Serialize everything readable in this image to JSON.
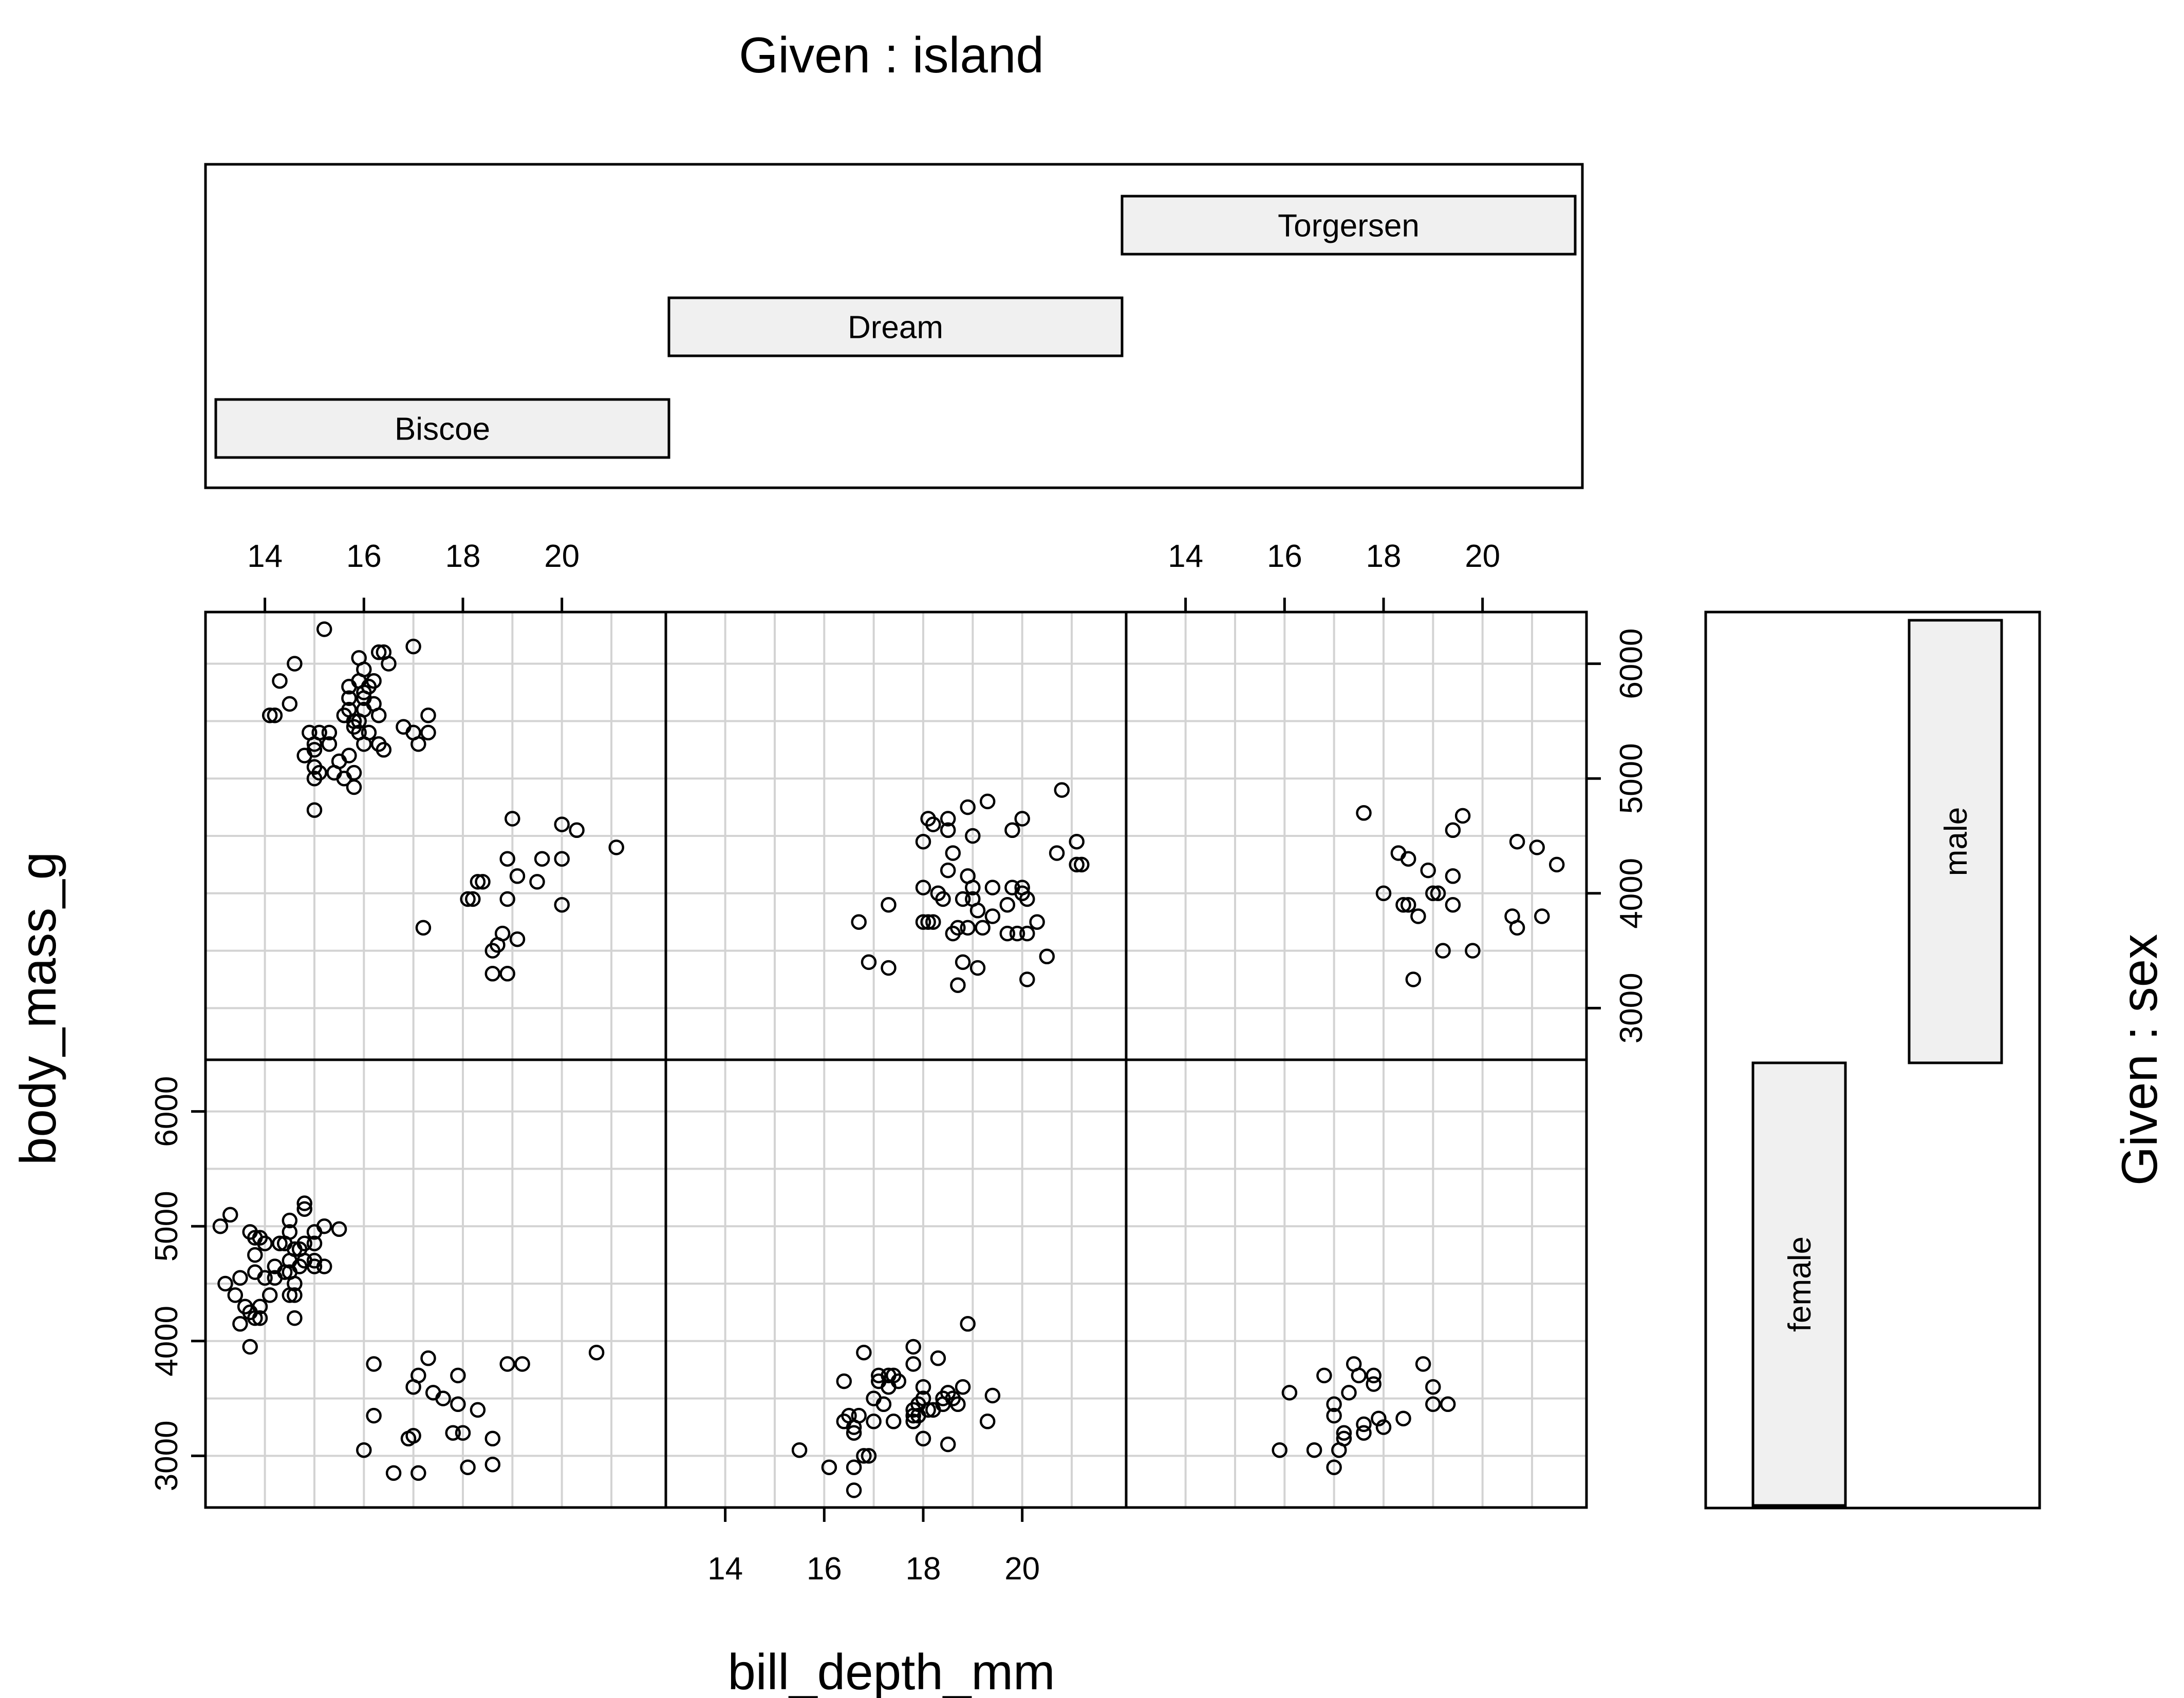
{
  "chart_data": {
    "type": "scatter",
    "title": "Given : island",
    "xlabel": "bill_depth_mm",
    "ylabel": "body_mass_g",
    "right_label": "Given : sex",
    "xlim": [
      12.8,
      22.1
    ],
    "ylim": [
      2550,
      6450
    ],
    "x_ticks": [
      14,
      16,
      18,
      20
    ],
    "y_ticks": [
      3000,
      4000,
      5000,
      6000
    ],
    "x_gridlines": [
      14,
      15,
      16,
      17,
      18,
      19,
      20,
      21
    ],
    "y_gridlines": [
      3000,
      3500,
      4000,
      4500,
      5000,
      5500,
      6000
    ],
    "grid": true,
    "islands": [
      "Biscoe",
      "Dream",
      "Torgersen"
    ],
    "sexes": [
      "female",
      "male"
    ],
    "panels": [
      {
        "island": "Biscoe",
        "sex": "male",
        "points": [
          [
            14.1,
            5550
          ],
          [
            14.2,
            5550
          ],
          [
            14.3,
            5850
          ],
          [
            14.5,
            5650
          ],
          [
            14.6,
            6000
          ],
          [
            14.8,
            5200
          ],
          [
            14.9,
            5400
          ],
          [
            15.0,
            5100
          ],
          [
            15.0,
            5000
          ],
          [
            15.0,
            5300
          ],
          [
            15.0,
            5250
          ],
          [
            15.0,
            4725
          ],
          [
            15.1,
            5400
          ],
          [
            15.1,
            5050
          ],
          [
            15.2,
            6300
          ],
          [
            15.3,
            5400
          ],
          [
            15.3,
            5300
          ],
          [
            15.4,
            5050
          ],
          [
            15.5,
            5150
          ],
          [
            15.6,
            5000
          ],
          [
            15.6,
            5550
          ],
          [
            15.7,
            5800
          ],
          [
            15.7,
            5700
          ],
          [
            15.7,
            5600
          ],
          [
            15.7,
            5200
          ],
          [
            15.8,
            5450
          ],
          [
            15.8,
            5500
          ],
          [
            15.8,
            4925
          ],
          [
            15.8,
            5050
          ],
          [
            15.9,
            5850
          ],
          [
            15.9,
            6050
          ],
          [
            15.9,
            5400
          ],
          [
            15.9,
            5500
          ],
          [
            16.0,
            5750
          ],
          [
            16.0,
            5700
          ],
          [
            16.0,
            5950
          ],
          [
            16.0,
            5600
          ],
          [
            16.0,
            5300
          ],
          [
            16.1,
            5800
          ],
          [
            16.1,
            5400
          ],
          [
            16.2,
            5650
          ],
          [
            16.2,
            5850
          ],
          [
            16.3,
            6100
          ],
          [
            16.3,
            5550
          ],
          [
            16.3,
            5300
          ],
          [
            16.4,
            5250
          ],
          [
            16.4,
            6100
          ],
          [
            16.5,
            6000
          ],
          [
            16.8,
            5450
          ],
          [
            17.0,
            6150
          ],
          [
            17.0,
            5400
          ],
          [
            17.1,
            5300
          ],
          [
            17.3,
            5400
          ],
          [
            17.3,
            5550
          ],
          [
            17.2,
            3700
          ],
          [
            18.1,
            3950
          ],
          [
            18.2,
            3950
          ],
          [
            18.3,
            4100
          ],
          [
            18.4,
            4100
          ],
          [
            18.6,
            3500
          ],
          [
            18.6,
            3300
          ],
          [
            18.7,
            3550
          ],
          [
            18.8,
            3650
          ],
          [
            18.9,
            4300
          ],
          [
            18.9,
            3950
          ],
          [
            18.9,
            3300
          ],
          [
            19.0,
            4650
          ],
          [
            19.1,
            4150
          ],
          [
            19.1,
            3600
          ],
          [
            19.5,
            4100
          ],
          [
            19.6,
            4300
          ],
          [
            20.0,
            4600
          ],
          [
            20.0,
            4300
          ],
          [
            20.0,
            3900
          ],
          [
            20.3,
            4550
          ],
          [
            21.1,
            4400
          ]
        ]
      },
      {
        "island": "Dream",
        "sex": "male",
        "points": [
          [
            16.7,
            3750
          ],
          [
            16.9,
            3400
          ],
          [
            17.3,
            3900
          ],
          [
            17.3,
            3350
          ],
          [
            18.0,
            4450
          ],
          [
            18.0,
            4050
          ],
          [
            18.0,
            3750
          ],
          [
            18.1,
            4650
          ],
          [
            18.1,
            3750
          ],
          [
            18.2,
            4600
          ],
          [
            18.2,
            3750
          ],
          [
            18.3,
            4000
          ],
          [
            18.4,
            3950
          ],
          [
            18.5,
            4650
          ],
          [
            18.5,
            4550
          ],
          [
            18.5,
            4200
          ],
          [
            18.6,
            4350
          ],
          [
            18.6,
            3650
          ],
          [
            18.7,
            3200
          ],
          [
            18.7,
            3700
          ],
          [
            18.8,
            3950
          ],
          [
            18.8,
            3400
          ],
          [
            18.9,
            4750
          ],
          [
            18.9,
            4150
          ],
          [
            18.9,
            3700
          ],
          [
            19.0,
            4500
          ],
          [
            19.0,
            4050
          ],
          [
            19.0,
            3950
          ],
          [
            19.1,
            3850
          ],
          [
            19.1,
            3350
          ],
          [
            19.2,
            3700
          ],
          [
            19.3,
            4800
          ],
          [
            19.4,
            4050
          ],
          [
            19.4,
            3800
          ],
          [
            19.7,
            3900
          ],
          [
            19.7,
            3650
          ],
          [
            19.8,
            4550
          ],
          [
            19.8,
            4050
          ],
          [
            19.9,
            3650
          ],
          [
            20.0,
            4650
          ],
          [
            20.0,
            4050
          ],
          [
            20.0,
            4000
          ],
          [
            20.1,
            3650
          ],
          [
            20.1,
            3950
          ],
          [
            20.1,
            3250
          ],
          [
            20.3,
            3750
          ],
          [
            20.5,
            3450
          ],
          [
            20.7,
            4350
          ],
          [
            20.8,
            4900
          ],
          [
            21.1,
            4450
          ],
          [
            21.1,
            4250
          ],
          [
            21.2,
            4250
          ]
        ]
      },
      {
        "island": "Torgersen",
        "sex": "male",
        "points": [
          [
            17.6,
            4700
          ],
          [
            18.0,
            4000
          ],
          [
            18.3,
            4350
          ],
          [
            18.4,
            3900
          ],
          [
            18.5,
            4300
          ],
          [
            18.5,
            3900
          ],
          [
            18.6,
            3250
          ],
          [
            18.7,
            3800
          ],
          [
            18.9,
            4200
          ],
          [
            19.0,
            4000
          ],
          [
            19.1,
            4000
          ],
          [
            19.2,
            3500
          ],
          [
            19.4,
            4550
          ],
          [
            19.4,
            4150
          ],
          [
            19.4,
            3900
          ],
          [
            19.6,
            4675
          ],
          [
            19.8,
            3500
          ],
          [
            20.6,
            3800
          ],
          [
            20.7,
            3700
          ],
          [
            20.7,
            4450
          ],
          [
            21.1,
            4400
          ],
          [
            21.2,
            3800
          ],
          [
            21.5,
            4250
          ]
        ]
      },
      {
        "island": "Biscoe",
        "sex": "female",
        "points": [
          [
            13.1,
            5000
          ],
          [
            13.2,
            4500
          ],
          [
            13.3,
            5100
          ],
          [
            13.4,
            4400
          ],
          [
            13.5,
            4550
          ],
          [
            13.5,
            4150
          ],
          [
            13.6,
            4300
          ],
          [
            13.7,
            4950
          ],
          [
            13.7,
            4250
          ],
          [
            13.7,
            3950
          ],
          [
            13.8,
            4900
          ],
          [
            13.8,
            4750
          ],
          [
            13.8,
            4600
          ],
          [
            13.8,
            4200
          ],
          [
            13.9,
            4900
          ],
          [
            13.9,
            4300
          ],
          [
            13.9,
            4200
          ],
          [
            14.0,
            4550
          ],
          [
            14.0,
            4850
          ],
          [
            14.1,
            4400
          ],
          [
            14.2,
            4650
          ],
          [
            14.2,
            4550
          ],
          [
            14.3,
            4850
          ],
          [
            14.4,
            4600
          ],
          [
            14.4,
            4850
          ],
          [
            14.5,
            4700
          ],
          [
            14.5,
            4400
          ],
          [
            14.5,
            4600
          ],
          [
            14.5,
            4950
          ],
          [
            14.5,
            5050
          ],
          [
            14.6,
            4800
          ],
          [
            14.6,
            4500
          ],
          [
            14.6,
            4200
          ],
          [
            14.6,
            4400
          ],
          [
            14.7,
            4650
          ],
          [
            14.7,
            4800
          ],
          [
            14.8,
            4700
          ],
          [
            14.8,
            4850
          ],
          [
            14.8,
            5150
          ],
          [
            14.8,
            5200
          ],
          [
            15.0,
            4650
          ],
          [
            15.0,
            4700
          ],
          [
            15.0,
            4850
          ],
          [
            15.0,
            4950
          ],
          [
            15.2,
            5000
          ],
          [
            15.2,
            4650
          ],
          [
            15.5,
            4975
          ],
          [
            16.0,
            3050
          ],
          [
            16.2,
            3800
          ],
          [
            16.2,
            3350
          ],
          [
            16.6,
            2850
          ],
          [
            16.9,
            3150
          ],
          [
            17.0,
            3600
          ],
          [
            17.0,
            3175
          ],
          [
            17.1,
            2850
          ],
          [
            17.1,
            3700
          ],
          [
            17.3,
            3850
          ],
          [
            17.4,
            3550
          ],
          [
            17.6,
            3500
          ],
          [
            17.8,
            3200
          ],
          [
            17.9,
            3450
          ],
          [
            17.9,
            3700
          ],
          [
            18.0,
            3200
          ],
          [
            18.1,
            2900
          ],
          [
            18.3,
            3400
          ],
          [
            18.6,
            3150
          ],
          [
            18.6,
            2925
          ],
          [
            18.9,
            3800
          ],
          [
            19.2,
            3800
          ],
          [
            20.7,
            3900
          ]
        ]
      },
      {
        "island": "Dream",
        "sex": "female",
        "points": [
          [
            15.5,
            3050
          ],
          [
            16.1,
            2900
          ],
          [
            16.4,
            3650
          ],
          [
            16.4,
            3300
          ],
          [
            16.5,
            3350
          ],
          [
            16.6,
            3250
          ],
          [
            16.6,
            3200
          ],
          [
            16.6,
            2700
          ],
          [
            16.6,
            2900
          ],
          [
            16.7,
            3350
          ],
          [
            16.8,
            3900
          ],
          [
            16.8,
            3000
          ],
          [
            16.9,
            3000
          ],
          [
            17.0,
            3500
          ],
          [
            17.0,
            3300
          ],
          [
            17.1,
            3700
          ],
          [
            17.1,
            3650
          ],
          [
            17.2,
            3450
          ],
          [
            17.3,
            3700
          ],
          [
            17.3,
            3600
          ],
          [
            17.4,
            3700
          ],
          [
            17.4,
            3300
          ],
          [
            17.5,
            3650
          ],
          [
            17.8,
            3400
          ],
          [
            17.8,
            3350
          ],
          [
            17.8,
            3950
          ],
          [
            17.8,
            3800
          ],
          [
            17.8,
            3300
          ],
          [
            17.9,
            3450
          ],
          [
            17.9,
            3350
          ],
          [
            18.0,
            3600
          ],
          [
            18.0,
            3500
          ],
          [
            18.0,
            3150
          ],
          [
            18.1,
            3400
          ],
          [
            18.2,
            3400
          ],
          [
            18.3,
            3850
          ],
          [
            18.4,
            3500
          ],
          [
            18.4,
            3450
          ],
          [
            18.5,
            3550
          ],
          [
            18.5,
            3100
          ],
          [
            18.6,
            3500
          ],
          [
            18.7,
            3450
          ],
          [
            18.8,
            3600
          ],
          [
            18.9,
            4150
          ],
          [
            19.3,
            3300
          ],
          [
            19.4,
            3525
          ]
        ]
      },
      {
        "island": "Torgersen",
        "sex": "female",
        "points": [
          [
            15.9,
            3050
          ],
          [
            16.1,
            3550
          ],
          [
            16.6,
            3050
          ],
          [
            16.8,
            3700
          ],
          [
            17.0,
            3450
          ],
          [
            17.0,
            3350
          ],
          [
            17.0,
            2900
          ],
          [
            17.1,
            3050
          ],
          [
            17.2,
            3150
          ],
          [
            17.2,
            3200
          ],
          [
            17.3,
            3550
          ],
          [
            17.4,
            3800
          ],
          [
            17.5,
            3700
          ],
          [
            17.6,
            3200
          ],
          [
            17.6,
            3275
          ],
          [
            17.8,
            3625
          ],
          [
            17.8,
            3700
          ],
          [
            17.9,
            3325
          ],
          [
            18.0,
            3250
          ],
          [
            18.4,
            3325
          ],
          [
            18.8,
            3800
          ],
          [
            19.0,
            3600
          ],
          [
            19.0,
            3450
          ],
          [
            19.3,
            3450
          ]
        ]
      }
    ]
  }
}
